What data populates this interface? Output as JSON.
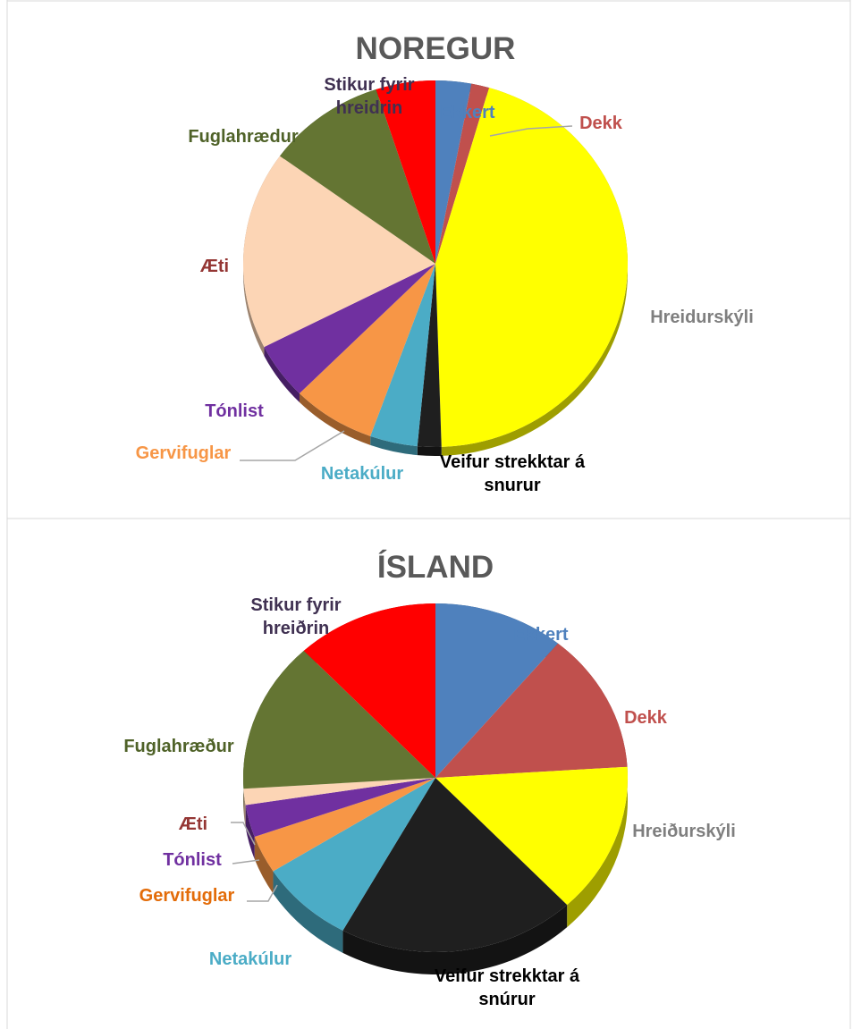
{
  "chart_data": [
    {
      "type": "pie",
      "title": "NOREGUR",
      "categories": [
        "Ekkert",
        "Dekk",
        "Hreidurskýli",
        "Veifur strekktar á snurur",
        "Netakúlur",
        "Gervifuglar",
        "Tónlist",
        "Æti",
        "Fuglahrædur",
        "Stikur fyrir hreidrin"
      ],
      "values": [
        3,
        1.5,
        45,
        2,
        4,
        7,
        5,
        17.5,
        10,
        5
      ],
      "colors": [
        "#4f81bd",
        "#c0504d",
        "#ffff00",
        "#1f1f1f",
        "#4bacc6",
        "#f79646",
        "#7030a0",
        "#fcd5b5",
        "#647533",
        "#ff0000"
      ],
      "label_colors": [
        "#4f81bd",
        "#c0504d",
        "#7f7f7f",
        "#000000",
        "#4bacc6",
        "#f79646",
        "#7030a0",
        "#943634",
        "#4f6228",
        "#403152"
      ]
    },
    {
      "type": "pie",
      "title": "ÍSLAND",
      "categories": [
        "Ekkert",
        "Dekk",
        "Hreiðurskýli",
        "Veifur strekktar á snúrur",
        "Netakúlur",
        "Gervifuglar",
        "Tónlist",
        "Æti",
        "Fuglahræður",
        "Stikur fyrir hreiðrin"
      ],
      "values": [
        11,
        13,
        14,
        20,
        8,
        3.5,
        3,
        1.5,
        14,
        12
      ],
      "colors": [
        "#4f81bd",
        "#c0504d",
        "#ffff00",
        "#1f1f1f",
        "#4bacc6",
        "#f79646",
        "#7030a0",
        "#fcd5b5",
        "#647533",
        "#ff0000"
      ],
      "label_colors": [
        "#4f81bd",
        "#c0504d",
        "#7f7f7f",
        "#000000",
        "#4bacc6",
        "#e36c09",
        "#7030a0",
        "#943634",
        "#4f6228",
        "#403152"
      ]
    }
  ]
}
